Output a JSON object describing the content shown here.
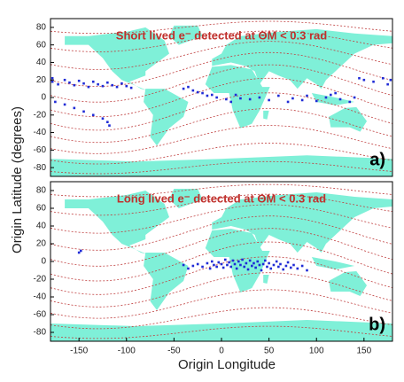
{
  "chart_data": [
    {
      "type": "scatter",
      "title": "Short lived e⁻ detected at ΘM < 0.3 rad",
      "panel_label": "a)",
      "ylabel": "Origin Latitude (degrees)",
      "color": "#1f2bd6",
      "xlim": [
        -180,
        180
      ],
      "ylim": [
        -90,
        90
      ],
      "yticks": [
        -80,
        -60,
        -40,
        -20,
        0,
        20,
        40,
        60,
        80
      ],
      "x": [
        -178,
        -172,
        -165,
        -160,
        -155,
        -150,
        -145,
        -140,
        -135,
        -130,
        -125,
        -120,
        -115,
        -110,
        -105,
        -100,
        -95,
        -175,
        -165,
        -155,
        -145,
        -135,
        -125,
        -120,
        -118,
        -40,
        -30,
        -20,
        -10,
        -5,
        5,
        10,
        15,
        20,
        -15,
        -25,
        -35,
        30,
        40,
        50,
        60,
        70,
        75,
        85,
        90,
        100,
        110,
        115,
        120,
        125,
        135,
        140,
        150,
        160,
        170,
        175,
        178,
        145,
        -178
      ],
      "y": [
        18,
        15,
        20,
        17,
        14,
        19,
        16,
        12,
        18,
        15,
        13,
        17,
        14,
        12,
        16,
        13,
        11,
        -5,
        -8,
        -12,
        -16,
        -20,
        -24,
        -28,
        -32,
        10,
        8,
        5,
        3,
        0,
        -2,
        -5,
        3,
        -1,
        2,
        6,
        12,
        -2,
        0,
        -3,
        2,
        -5,
        -1,
        -3,
        2,
        -4,
        0,
        3,
        5,
        -2,
        -5,
        0,
        20,
        18,
        22,
        15,
        20,
        22,
        22
      ]
    },
    {
      "type": "scatter",
      "title": "Long lived e⁻ detected at ΘM < 0.3 rad",
      "panel_label": "b)",
      "xlabel": "Origin Longitude",
      "color": "#1f2bd6",
      "xlim": [
        -180,
        180
      ],
      "ylim": [
        -90,
        90
      ],
      "yticks": [
        -80,
        -60,
        -40,
        -20,
        0,
        20,
        40,
        60,
        80
      ],
      "xticks": [
        -150,
        -100,
        -50,
        0,
        50,
        100,
        150
      ],
      "x": [
        -30,
        -25,
        -20,
        -15,
        -12,
        -10,
        -8,
        -5,
        -3,
        0,
        2,
        4,
        6,
        8,
        10,
        12,
        14,
        16,
        18,
        20,
        22,
        24,
        26,
        28,
        30,
        32,
        34,
        36,
        38,
        40,
        42,
        44,
        46,
        48,
        50,
        52,
        55,
        58,
        60,
        62,
        65,
        68,
        70,
        73,
        76,
        80,
        85,
        90,
        -35,
        -40,
        -150,
        -148
      ],
      "y": [
        -5,
        -3,
        -6,
        -2,
        -8,
        0,
        -4,
        -6,
        -1,
        -3,
        -7,
        2,
        -4,
        -1,
        -6,
        1,
        -3,
        -8,
        0,
        -4,
        2,
        -6,
        -2,
        -9,
        1,
        -5,
        -2,
        -7,
        0,
        -4,
        -10,
        -3,
        1,
        -6,
        -2,
        -8,
        -4,
        0,
        -6,
        -3,
        -9,
        -5,
        -1,
        -7,
        -4,
        -8,
        -5,
        -10,
        -8,
        -4,
        10,
        12
      ]
    }
  ]
}
